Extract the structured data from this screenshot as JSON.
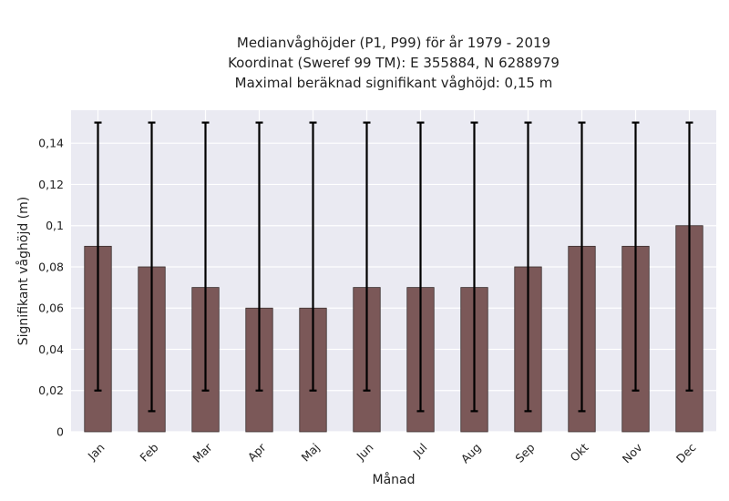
{
  "chart_data": {
    "type": "bar",
    "title_lines": [
      "Medianvåghöjder (P1, P99) för år 1979 - 2019",
      "Koordinat (Sweref 99 TM): E 355884, N 6288979",
      "Maximal beräknad signifikant våghöjd: 0,15 m"
    ],
    "xlabel": "Månad",
    "ylabel": "Signifikant våghöjd (m)",
    "categories": [
      "Jan",
      "Feb",
      "Mar",
      "Apr",
      "Maj",
      "Jun",
      "Jul",
      "Aug",
      "Sep",
      "Okt",
      "Nov",
      "Dec"
    ],
    "values": [
      0.09,
      0.08,
      0.07,
      0.06,
      0.06,
      0.07,
      0.07,
      0.07,
      0.08,
      0.09,
      0.09,
      0.1
    ],
    "p1": [
      0.02,
      0.01,
      0.02,
      0.02,
      0.02,
      0.02,
      0.01,
      0.01,
      0.01,
      0.01,
      0.02,
      0.02
    ],
    "p99": [
      0.15,
      0.15,
      0.15,
      0.15,
      0.15,
      0.15,
      0.15,
      0.15,
      0.15,
      0.15,
      0.15,
      0.15
    ],
    "ylim": [
      0,
      0.156
    ],
    "yticks": [
      0,
      0.02,
      0.04,
      0.06,
      0.08,
      0.1,
      0.12,
      0.14
    ],
    "ytick_labels": [
      "0",
      "0,02",
      "0,04",
      "0,06",
      "0,08",
      "0,1",
      "0,12",
      "0,14"
    ],
    "grid": true,
    "colors": {
      "bar": "#7b5858",
      "plot_background": "#eaeaf2",
      "errorbar": "#000000"
    }
  }
}
